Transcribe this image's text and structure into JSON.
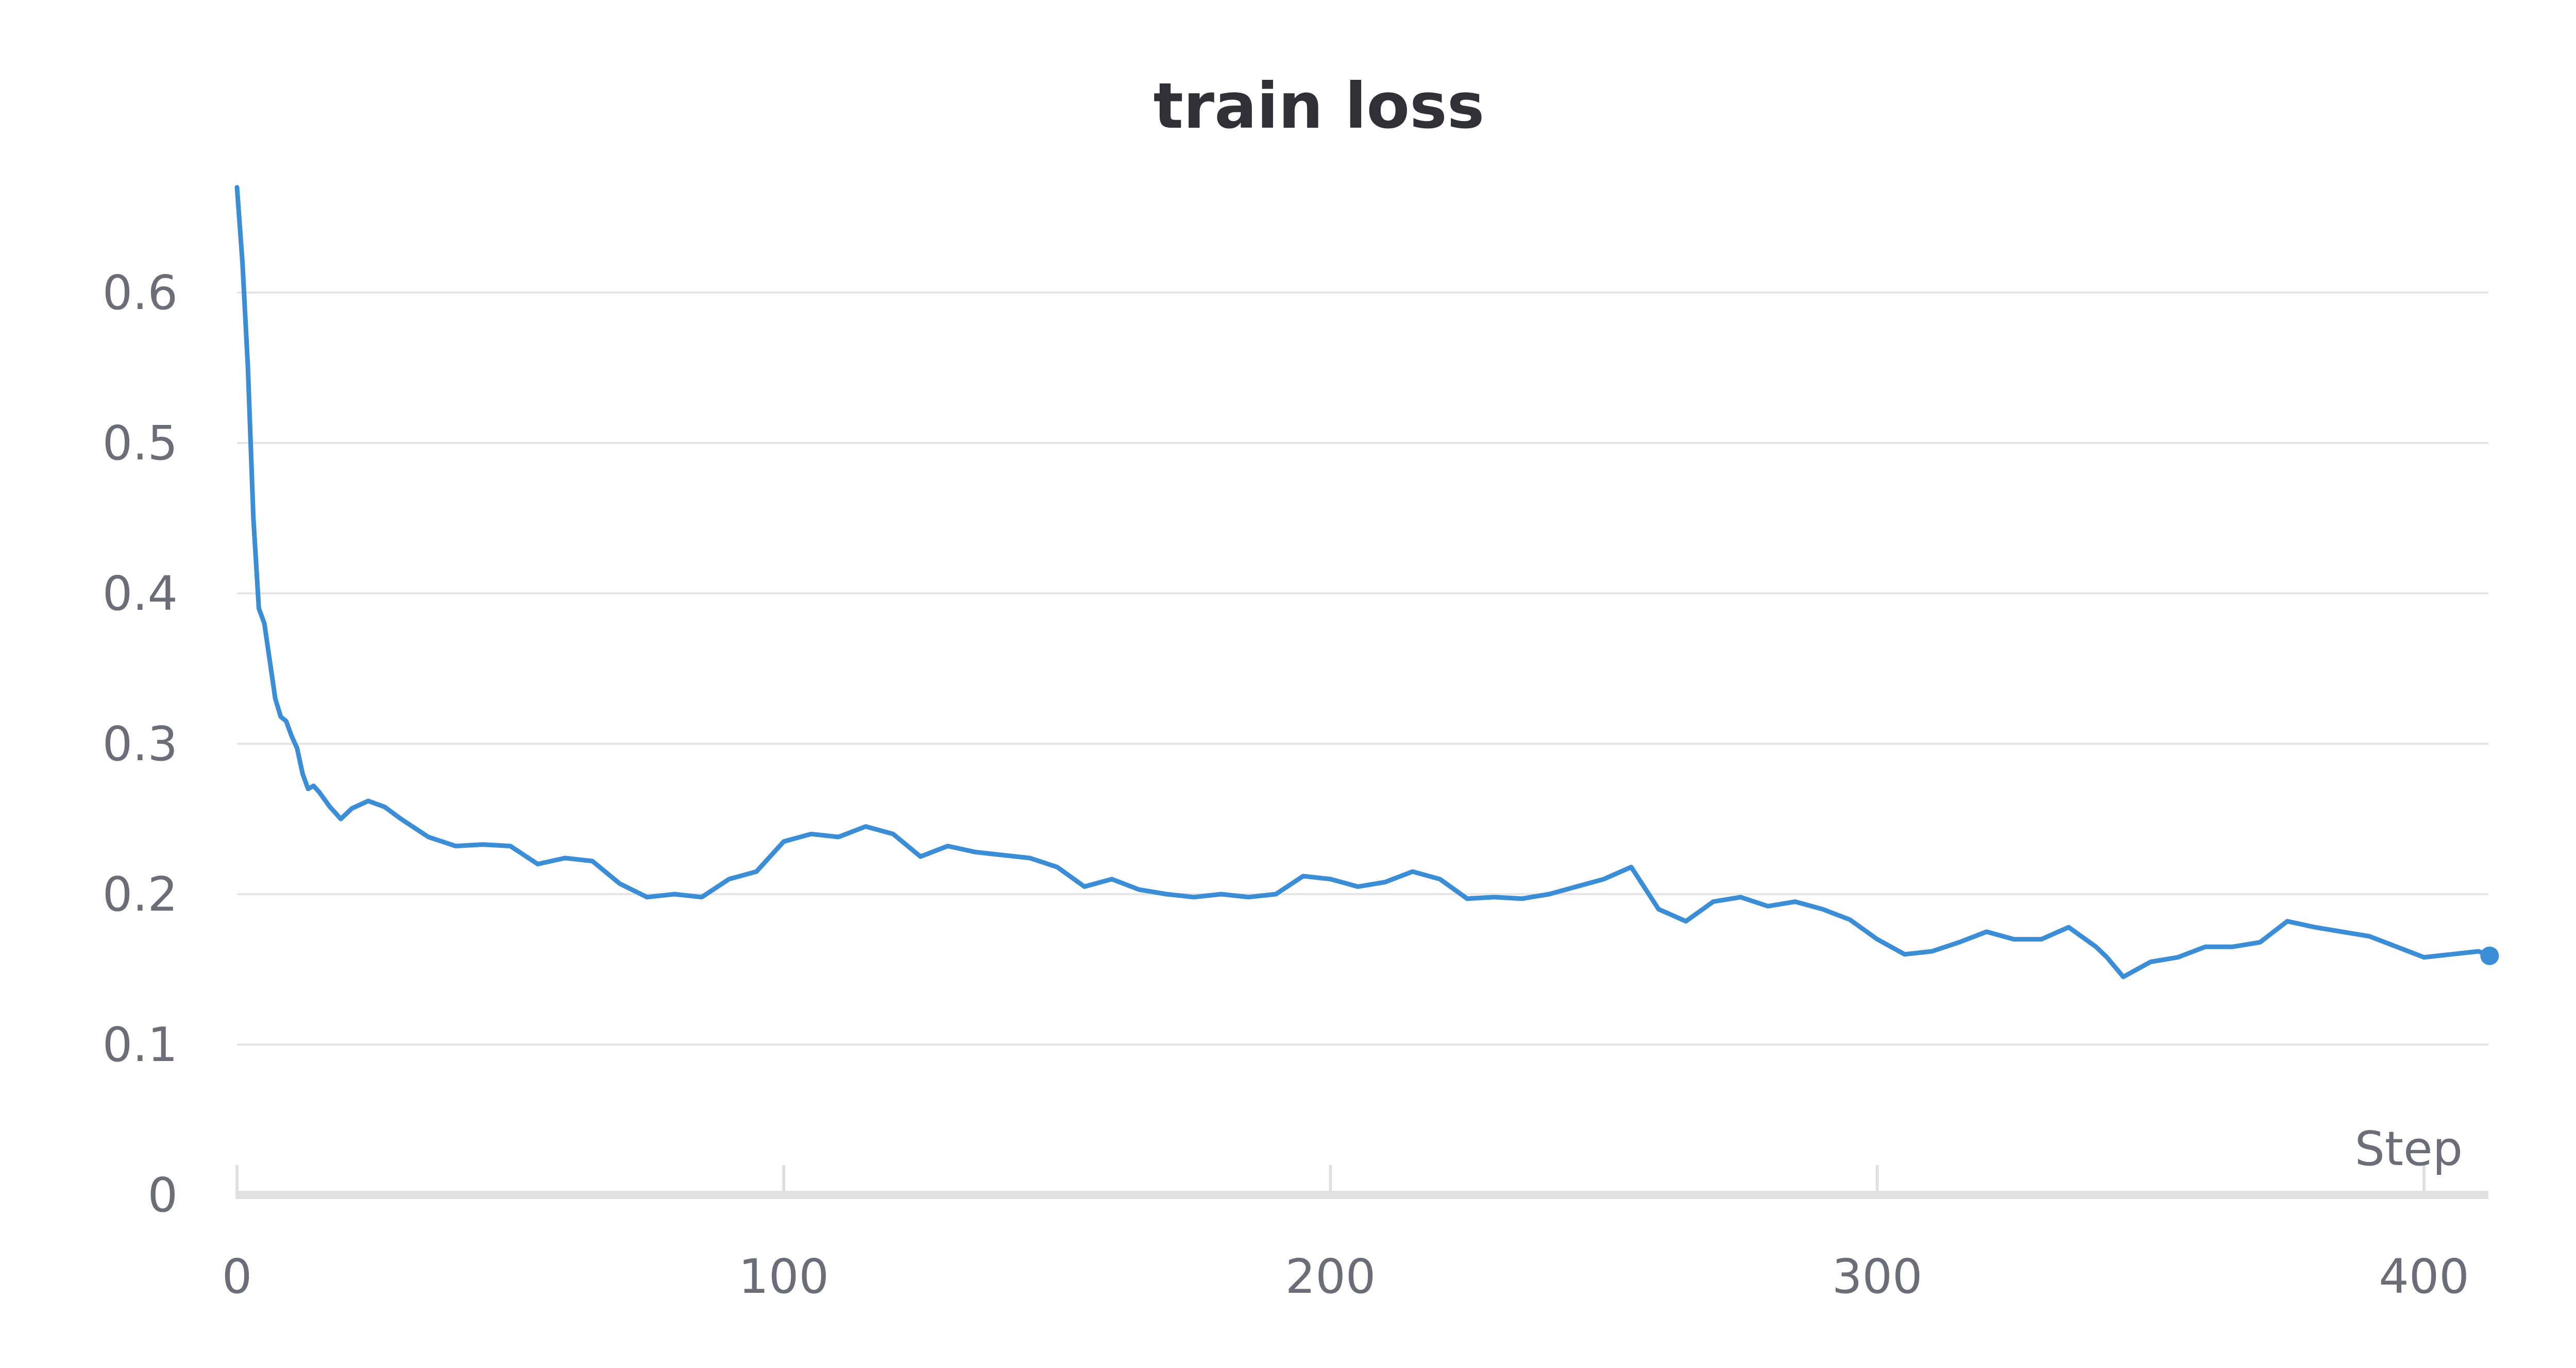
{
  "chart_data": {
    "type": "line",
    "title": "train loss",
    "xlabel": "Step",
    "ylabel": "",
    "xlim": [
      0,
      412
    ],
    "ylim": [
      0,
      0.67
    ],
    "x_ticks": [
      0,
      100,
      200,
      300,
      400
    ],
    "x_tick_labels": [
      "0",
      "100",
      "200",
      "300",
      "400"
    ],
    "y_ticks": [
      0,
      0.1,
      0.2,
      0.3,
      0.4,
      0.5,
      0.6
    ],
    "y_tick_labels": [
      "0",
      "0.1",
      "0.2",
      "0.3",
      "0.4",
      "0.5",
      "0.6"
    ],
    "grid": true,
    "legend": "none",
    "series_color": "#3b8ed6",
    "series": [
      {
        "x": [
          0,
          1,
          2,
          3,
          4,
          5,
          6,
          7,
          8,
          9,
          10,
          11,
          12,
          13,
          14,
          15,
          17,
          19,
          21,
          24,
          27,
          30,
          35,
          40,
          45,
          50,
          55,
          60,
          65,
          70,
          75,
          80,
          85,
          90,
          95,
          100,
          105,
          110,
          115,
          120,
          125,
          130,
          135,
          140,
          145,
          150,
          155,
          160,
          165,
          170,
          175,
          180,
          185,
          190,
          195,
          200,
          205,
          210,
          215,
          220,
          225,
          230,
          235,
          240,
          245,
          250,
          255,
          260,
          265,
          270,
          275,
          280,
          285,
          290,
          295,
          300,
          305,
          310,
          315,
          320,
          325,
          330,
          335,
          340,
          342,
          345,
          350,
          355,
          360,
          365,
          370,
          375,
          380,
          385,
          390,
          395,
          400,
          405,
          410,
          412
        ],
        "y": [
          0.67,
          0.62,
          0.55,
          0.45,
          0.39,
          0.38,
          0.355,
          0.33,
          0.318,
          0.315,
          0.305,
          0.297,
          0.28,
          0.27,
          0.272,
          0.268,
          0.258,
          0.25,
          0.257,
          0.262,
          0.258,
          0.25,
          0.238,
          0.232,
          0.233,
          0.232,
          0.22,
          0.224,
          0.222,
          0.207,
          0.198,
          0.2,
          0.198,
          0.21,
          0.215,
          0.235,
          0.24,
          0.238,
          0.245,
          0.24,
          0.225,
          0.232,
          0.228,
          0.226,
          0.224,
          0.218,
          0.205,
          0.21,
          0.203,
          0.2,
          0.198,
          0.2,
          0.198,
          0.2,
          0.212,
          0.21,
          0.205,
          0.208,
          0.215,
          0.21,
          0.197,
          0.198,
          0.197,
          0.2,
          0.205,
          0.21,
          0.218,
          0.19,
          0.182,
          0.195,
          0.198,
          0.192,
          0.195,
          0.19,
          0.183,
          0.17,
          0.16,
          0.162,
          0.168,
          0.175,
          0.17,
          0.17,
          0.178,
          0.165,
          0.158,
          0.145,
          0.155,
          0.158,
          0.165,
          0.165,
          0.168,
          0.182,
          0.178,
          0.175,
          0.172,
          0.165,
          0.158,
          0.16,
          0.162,
          0.159
        ]
      }
    ]
  }
}
